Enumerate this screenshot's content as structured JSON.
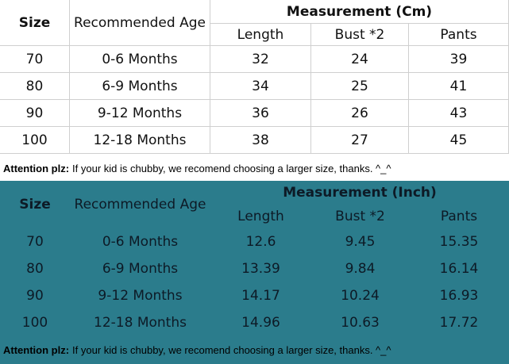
{
  "sections": [
    {
      "header": {
        "size": "Size",
        "age": "Recommended Age",
        "measurement": "Measurement (Cm)",
        "columns": [
          "Length",
          "Bust *2",
          "Pants"
        ]
      },
      "rows": [
        [
          "70",
          "0-6 Months",
          32,
          24,
          39
        ],
        [
          "80",
          "6-9 Months",
          34,
          25,
          41
        ],
        [
          "90",
          "9-12 Months",
          36,
          26,
          43
        ],
        [
          "100",
          "12-18 Months",
          38,
          27,
          45
        ]
      ],
      "note": {
        "label": "Attention plz:",
        "text": "If your kid is chubby, we recomend choosing a larger size, thanks. ^_^"
      }
    },
    {
      "header": {
        "size": "Size",
        "age": "Recommended Age",
        "measurement": "Measurement (Inch)",
        "columns": [
          "Length",
          "Bust *2",
          "Pants"
        ]
      },
      "rows": [
        [
          "70",
          "0-6 Months",
          12.6,
          9.45,
          15.35
        ],
        [
          "80",
          "6-9 Months",
          13.39,
          9.84,
          16.14
        ],
        [
          "90",
          "9-12 Months",
          14.17,
          10.24,
          16.93
        ],
        [
          "100",
          "12-18 Months",
          14.96,
          10.63,
          17.72
        ]
      ],
      "note": {
        "label": "Attention plz:",
        "text": "If your kid is chubby, we recomend choosing a larger size, thanks. ^_^"
      }
    }
  ]
}
